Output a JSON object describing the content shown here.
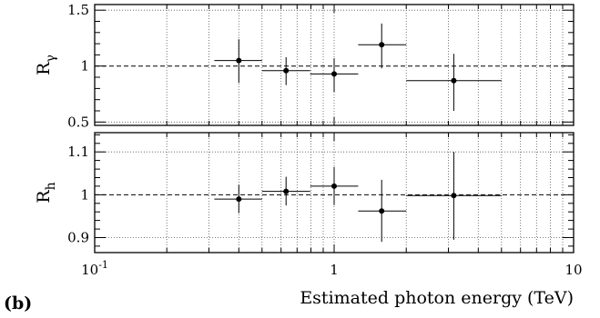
{
  "panel_label": "(b)",
  "xlabel": "Estimated photon energy (TeV)",
  "chart_data": [
    {
      "type": "scatter",
      "panel": "top",
      "ylabel": "Rγ",
      "ylabel_main": "R",
      "ylabel_sub": "γ",
      "xscale": "log",
      "xlim": [
        0.1,
        10
      ],
      "ylim": [
        0.47,
        1.55
      ],
      "yticks": [
        0.5,
        1,
        1.5
      ],
      "ytick_labels": [
        "0.5",
        "1",
        "1.5"
      ],
      "reference_line": 1,
      "grid": true,
      "points": [
        {
          "x": 0.4,
          "y": 1.05,
          "xlo": 0.316,
          "xhi": 0.5,
          "ylo": 0.85,
          "yhi": 1.24
        },
        {
          "x": 0.63,
          "y": 0.96,
          "xlo": 0.5,
          "xhi": 0.794,
          "ylo": 0.83,
          "yhi": 1.08
        },
        {
          "x": 1.0,
          "y": 0.93,
          "xlo": 0.794,
          "xhi": 1.26,
          "ylo": 0.77,
          "yhi": 1.07
        },
        {
          "x": 1.58,
          "y": 1.19,
          "xlo": 1.26,
          "xhi": 2.0,
          "ylo": 0.98,
          "yhi": 1.38
        },
        {
          "x": 3.16,
          "y": 0.87,
          "xlo": 2.0,
          "xhi": 5.0,
          "ylo": 0.6,
          "yhi": 1.11
        }
      ]
    },
    {
      "type": "scatter",
      "panel": "bottom",
      "ylabel": "Rh",
      "ylabel_main": "R",
      "ylabel_sub": "h",
      "xscale": "log",
      "xlim": [
        0.1,
        10
      ],
      "ylim": [
        0.865,
        1.145
      ],
      "yticks": [
        0.9,
        1,
        1.1
      ],
      "ytick_labels": [
        "0.9",
        "1",
        "1.1"
      ],
      "xticks": [
        0.1,
        1,
        10
      ],
      "xtick_labels": [
        {
          "base": "10",
          "exp": "-1"
        },
        {
          "base": "1",
          "exp": ""
        },
        {
          "base": "10",
          "exp": ""
        }
      ],
      "reference_line": 1,
      "grid": true,
      "points": [
        {
          "x": 0.4,
          "y": 0.99,
          "xlo": 0.316,
          "xhi": 0.5,
          "ylo": 0.957,
          "yhi": 1.023
        },
        {
          "x": 0.63,
          "y": 1.008,
          "xlo": 0.5,
          "xhi": 0.794,
          "ylo": 0.975,
          "yhi": 1.042
        },
        {
          "x": 1.0,
          "y": 1.02,
          "xlo": 0.794,
          "xhi": 1.26,
          "ylo": 0.976,
          "yhi": 1.065
        },
        {
          "x": 1.58,
          "y": 0.962,
          "xlo": 1.26,
          "xhi": 2.0,
          "ylo": 0.89,
          "yhi": 1.035
        },
        {
          "x": 3.16,
          "y": 0.998,
          "xlo": 2.0,
          "xhi": 5.0,
          "ylo": 0.895,
          "yhi": 1.1
        }
      ]
    }
  ]
}
